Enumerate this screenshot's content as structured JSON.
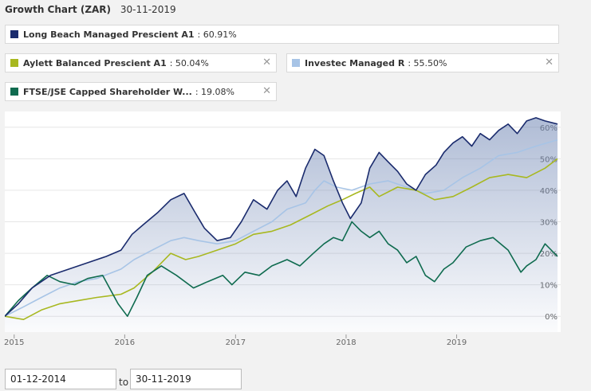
{
  "header": {
    "title": "Growth Chart (ZAR)",
    "date": "30-11-2019"
  },
  "legend": [
    {
      "name": "Long Beach Managed Prescient A1",
      "value": ": 60.91%",
      "color": "#1a2b6d",
      "closable": false
    },
    {
      "name": "Aylett Balanced Prescient A1",
      "value": ": 50.04%",
      "color": "#a8b820",
      "closable": true,
      "close": "✕"
    },
    {
      "name": "Investec Managed R",
      "value": ": 55.50%",
      "color": "#a7c4e6",
      "closable": true,
      "close": "✕"
    },
    {
      "name": "FTSE/JSE Capped Shareholder W...",
      "value": ": 19.08%",
      "color": "#0f6b4f",
      "closable": true,
      "close": "✕"
    }
  ],
  "range": {
    "from": "01-12-2014",
    "to_label": "to",
    "to": "30-11-2019"
  },
  "chart_data": {
    "type": "line",
    "x_labels": [
      "2015",
      "2016",
      "2017",
      "2018",
      "2019"
    ],
    "y_labels": [
      "0%",
      "10%",
      "20%",
      "30%",
      "40%",
      "50%",
      "60%"
    ],
    "ylim": [
      -5,
      65
    ],
    "xlim": [
      "2014-12-01",
      "2019-11-30"
    ],
    "y_axis_side": "right",
    "grid": true,
    "series": [
      {
        "name": "Long Beach Managed Prescient A1",
        "color": "#1a2b6d",
        "fill": true,
        "points": [
          [
            "2014-12-01",
            0
          ],
          [
            "2015-01-15",
            4
          ],
          [
            "2015-03-01",
            9
          ],
          [
            "2015-05-01",
            13
          ],
          [
            "2015-07-01",
            15
          ],
          [
            "2015-09-01",
            17
          ],
          [
            "2015-11-01",
            19
          ],
          [
            "2015-12-20",
            21
          ],
          [
            "2016-01-25",
            26
          ],
          [
            "2016-03-01",
            29
          ],
          [
            "2016-04-20",
            33
          ],
          [
            "2016-06-01",
            37
          ],
          [
            "2016-07-15",
            39
          ],
          [
            "2016-08-20",
            33
          ],
          [
            "2016-09-20",
            28
          ],
          [
            "2016-11-01",
            24
          ],
          [
            "2016-12-15",
            25
          ],
          [
            "2017-01-20",
            30
          ],
          [
            "2017-03-01",
            37
          ],
          [
            "2017-04-15",
            34
          ],
          [
            "2017-05-20",
            40
          ],
          [
            "2017-06-20",
            43
          ],
          [
            "2017-07-20",
            38
          ],
          [
            "2017-08-20",
            47
          ],
          [
            "2017-09-20",
            53
          ],
          [
            "2017-10-20",
            51
          ],
          [
            "2017-11-20",
            43
          ],
          [
            "2017-12-20",
            36
          ],
          [
            "2018-01-15",
            31
          ],
          [
            "2018-02-20",
            36
          ],
          [
            "2018-03-20",
            47
          ],
          [
            "2018-04-20",
            52
          ],
          [
            "2018-05-20",
            49
          ],
          [
            "2018-06-20",
            46
          ],
          [
            "2018-07-20",
            42
          ],
          [
            "2018-08-20",
            40
          ],
          [
            "2018-09-20",
            45
          ],
          [
            "2018-10-25",
            48
          ],
          [
            "2018-11-20",
            52
          ],
          [
            "2018-12-20",
            55
          ],
          [
            "2019-01-20",
            57
          ],
          [
            "2019-02-20",
            54
          ],
          [
            "2019-03-20",
            58
          ],
          [
            "2019-04-20",
            56
          ],
          [
            "2019-05-20",
            59
          ],
          [
            "2019-06-20",
            61
          ],
          [
            "2019-07-20",
            58
          ],
          [
            "2019-08-20",
            62
          ],
          [
            "2019-09-20",
            63
          ],
          [
            "2019-10-20",
            62
          ],
          [
            "2019-11-30",
            61
          ]
        ]
      },
      {
        "name": "Investec Managed R",
        "color": "#a7c4e6",
        "fill": false,
        "points": [
          [
            "2014-12-01",
            0
          ],
          [
            "2015-02-01",
            3
          ],
          [
            "2015-04-01",
            6
          ],
          [
            "2015-06-01",
            9
          ],
          [
            "2015-08-01",
            11
          ],
          [
            "2015-10-01",
            12
          ],
          [
            "2015-12-20",
            15
          ],
          [
            "2016-02-01",
            18
          ],
          [
            "2016-04-01",
            21
          ],
          [
            "2016-06-01",
            24
          ],
          [
            "2016-07-15",
            25
          ],
          [
            "2016-09-01",
            24
          ],
          [
            "2016-11-01",
            23
          ],
          [
            "2017-01-01",
            24
          ],
          [
            "2017-03-01",
            27
          ],
          [
            "2017-05-01",
            30
          ],
          [
            "2017-06-20",
            34
          ],
          [
            "2017-08-20",
            36
          ],
          [
            "2017-09-20",
            40
          ],
          [
            "2017-10-20",
            43
          ],
          [
            "2017-12-01",
            41
          ],
          [
            "2018-01-20",
            40
          ],
          [
            "2018-03-20",
            42
          ],
          [
            "2018-05-20",
            43
          ],
          [
            "2018-07-20",
            41
          ],
          [
            "2018-09-20",
            39
          ],
          [
            "2018-11-20",
            40
          ],
          [
            "2019-01-20",
            44
          ],
          [
            "2019-03-20",
            47
          ],
          [
            "2019-05-20",
            51
          ],
          [
            "2019-07-20",
            52
          ],
          [
            "2019-09-20",
            54
          ],
          [
            "2019-11-30",
            56
          ]
        ]
      },
      {
        "name": "Aylett Balanced Prescient A1",
        "color": "#a8b820",
        "fill": false,
        "points": [
          [
            "2014-12-01",
            0
          ],
          [
            "2015-02-01",
            -1
          ],
          [
            "2015-04-01",
            2
          ],
          [
            "2015-06-01",
            4
          ],
          [
            "2015-08-01",
            5
          ],
          [
            "2015-10-01",
            6
          ],
          [
            "2015-12-20",
            7
          ],
          [
            "2016-02-01",
            9
          ],
          [
            "2016-04-01",
            14
          ],
          [
            "2016-06-01",
            20
          ],
          [
            "2016-07-20",
            18
          ],
          [
            "2016-09-01",
            19
          ],
          [
            "2016-11-01",
            21
          ],
          [
            "2017-01-01",
            23
          ],
          [
            "2017-03-01",
            26
          ],
          [
            "2017-05-01",
            27
          ],
          [
            "2017-07-01",
            29
          ],
          [
            "2017-09-01",
            32
          ],
          [
            "2017-11-01",
            35
          ],
          [
            "2017-12-20",
            37
          ],
          [
            "2018-02-01",
            39
          ],
          [
            "2018-03-20",
            41
          ],
          [
            "2018-04-20",
            38
          ],
          [
            "2018-06-20",
            41
          ],
          [
            "2018-08-20",
            40
          ],
          [
            "2018-10-20",
            37
          ],
          [
            "2018-12-20",
            38
          ],
          [
            "2019-02-20",
            41
          ],
          [
            "2019-04-20",
            44
          ],
          [
            "2019-06-20",
            45
          ],
          [
            "2019-08-20",
            44
          ],
          [
            "2019-10-20",
            47
          ],
          [
            "2019-11-30",
            50
          ]
        ]
      },
      {
        "name": "FTSE/JSE Capped Shareholder W...",
        "color": "#0f6b4f",
        "fill": false,
        "points": [
          [
            "2014-12-01",
            0
          ],
          [
            "2015-01-15",
            5
          ],
          [
            "2015-03-01",
            9
          ],
          [
            "2015-04-20",
            13
          ],
          [
            "2015-06-01",
            11
          ],
          [
            "2015-07-20",
            10
          ],
          [
            "2015-09-01",
            12
          ],
          [
            "2015-10-20",
            13
          ],
          [
            "2015-12-10",
            4
          ],
          [
            "2016-01-10",
            0
          ],
          [
            "2016-02-10",
            6
          ],
          [
            "2016-03-15",
            13
          ],
          [
            "2016-05-01",
            16
          ],
          [
            "2016-06-20",
            13
          ],
          [
            "2016-08-15",
            9
          ],
          [
            "2016-10-01",
            11
          ],
          [
            "2016-11-20",
            13
          ],
          [
            "2016-12-20",
            10
          ],
          [
            "2017-02-01",
            14
          ],
          [
            "2017-03-20",
            13
          ],
          [
            "2017-05-01",
            16
          ],
          [
            "2017-06-20",
            18
          ],
          [
            "2017-08-01",
            16
          ],
          [
            "2017-09-15",
            20
          ],
          [
            "2017-10-20",
            23
          ],
          [
            "2017-11-20",
            25
          ],
          [
            "2017-12-20",
            24
          ],
          [
            "2018-01-20",
            30
          ],
          [
            "2018-02-20",
            27
          ],
          [
            "2018-03-20",
            25
          ],
          [
            "2018-04-20",
            27
          ],
          [
            "2018-05-20",
            23
          ],
          [
            "2018-06-20",
            21
          ],
          [
            "2018-07-20",
            17
          ],
          [
            "2018-08-20",
            19
          ],
          [
            "2018-09-20",
            13
          ],
          [
            "2018-10-20",
            11
          ],
          [
            "2018-11-20",
            15
          ],
          [
            "2018-12-20",
            17
          ],
          [
            "2019-02-01",
            22
          ],
          [
            "2019-03-20",
            24
          ],
          [
            "2019-05-01",
            25
          ],
          [
            "2019-06-20",
            21
          ],
          [
            "2019-08-01",
            14
          ],
          [
            "2019-08-20",
            16
          ],
          [
            "2019-09-20",
            18
          ],
          [
            "2019-10-20",
            23
          ],
          [
            "2019-11-30",
            19
          ]
        ]
      }
    ]
  }
}
